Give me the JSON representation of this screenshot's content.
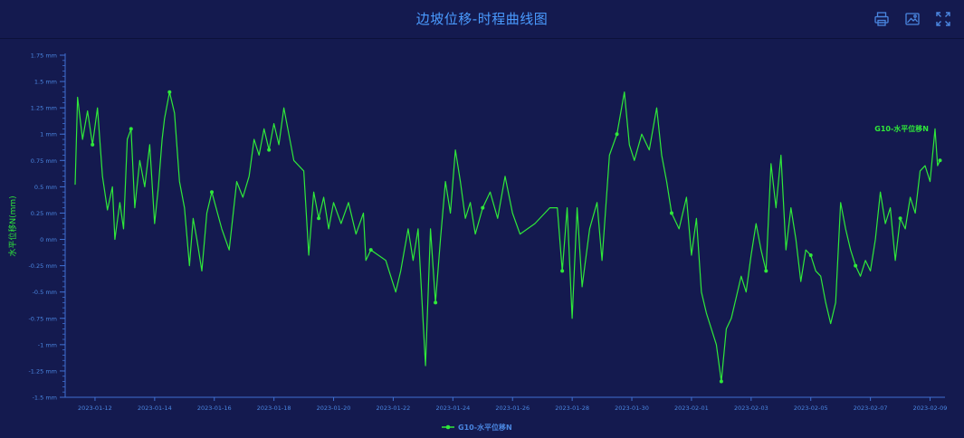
{
  "page": {
    "title": "边坡位移-时程曲线图"
  },
  "toolbar": {
    "icons": [
      "print-icon",
      "save-image-icon",
      "fullscreen-icon"
    ]
  },
  "colors": {
    "background": "#141a4f",
    "title": "#4a9bff",
    "axis": "#3f6fd1",
    "tick_text": "#4a86e0",
    "series": "#2fe83a"
  },
  "chart_data": {
    "type": "line",
    "ylabel": "水平位移N(mm)",
    "y_ticks": [
      "1.75 mm",
      "1.5 mm",
      "1.25 mm",
      "1 mm",
      "0.75 mm",
      "0.5 mm",
      "0.25 mm",
      "0 mm",
      "-0.25 mm",
      "-0.5 mm",
      "-0.75 mm",
      "-1 mm",
      "-1.25 mm",
      "-1.5 mm"
    ],
    "ylim": [
      -1.5,
      1.75
    ],
    "x_ticks": [
      "2023-01-12",
      "2023-01-14",
      "2023-01-16",
      "2023-01-18",
      "2023-01-20",
      "2023-01-22",
      "2023-01-24",
      "2023-01-26",
      "2023-01-28",
      "2023-01-30",
      "2023-02-01",
      "2023-02-03",
      "2023-02-05",
      "2023-02-07",
      "2023-02-09"
    ],
    "xlim": [
      "2023-01-11 00:00",
      "2023-02-09 12:00"
    ],
    "legend": "bottom-center",
    "series": [
      {
        "name": "G10-水平位移N",
        "end_label": "G10-水平位移N",
        "points": [
          [
            "2023-01-11 08:00",
            0.52
          ],
          [
            "2023-01-11 10:00",
            1.35
          ],
          [
            "2023-01-11 14:00",
            0.95
          ],
          [
            "2023-01-11 18:00",
            1.22
          ],
          [
            "2023-01-11 22:00",
            0.9
          ],
          [
            "2023-01-12 02:00",
            1.25
          ],
          [
            "2023-01-12 06:00",
            0.6
          ],
          [
            "2023-01-12 10:00",
            0.28
          ],
          [
            "2023-01-12 14:00",
            0.5
          ],
          [
            "2023-01-12 16:00",
            0.0
          ],
          [
            "2023-01-12 20:00",
            0.35
          ],
          [
            "2023-01-12 23:00",
            0.1
          ],
          [
            "2023-01-13 02:00",
            0.95
          ],
          [
            "2023-01-13 05:00",
            1.05
          ],
          [
            "2023-01-13 08:00",
            0.3
          ],
          [
            "2023-01-13 12:00",
            0.75
          ],
          [
            "2023-01-13 16:00",
            0.5
          ],
          [
            "2023-01-13 20:00",
            0.9
          ],
          [
            "2023-01-14 00:00",
            0.15
          ],
          [
            "2023-01-14 03:00",
            0.5
          ],
          [
            "2023-01-14 06:00",
            0.95
          ],
          [
            "2023-01-14 08:00",
            1.15
          ],
          [
            "2023-01-14 12:00",
            1.4
          ],
          [
            "2023-01-14 16:00",
            1.2
          ],
          [
            "2023-01-14 20:00",
            0.55
          ],
          [
            "2023-01-15 00:00",
            0.3
          ],
          [
            "2023-01-15 04:00",
            -0.25
          ],
          [
            "2023-01-15 07:00",
            0.2
          ],
          [
            "2023-01-15 10:00",
            0.0
          ],
          [
            "2023-01-15 14:00",
            -0.3
          ],
          [
            "2023-01-15 18:00",
            0.25
          ],
          [
            "2023-01-15 22:00",
            0.45
          ],
          [
            "2023-01-16 06:00",
            0.1
          ],
          [
            "2023-01-16 12:00",
            -0.1
          ],
          [
            "2023-01-16 18:00",
            0.55
          ],
          [
            "2023-01-16 23:00",
            0.4
          ],
          [
            "2023-01-17 04:00",
            0.6
          ],
          [
            "2023-01-17 08:00",
            0.95
          ],
          [
            "2023-01-17 12:00",
            0.8
          ],
          [
            "2023-01-17 16:00",
            1.05
          ],
          [
            "2023-01-17 20:00",
            0.85
          ],
          [
            "2023-01-18 00:00",
            1.1
          ],
          [
            "2023-01-18 04:00",
            0.9
          ],
          [
            "2023-01-18 08:00",
            1.25
          ],
          [
            "2023-01-18 12:00",
            1.0
          ],
          [
            "2023-01-18 16:00",
            0.75
          ],
          [
            "2023-01-19 00:00",
            0.65
          ],
          [
            "2023-01-19 04:00",
            -0.15
          ],
          [
            "2023-01-19 08:00",
            0.45
          ],
          [
            "2023-01-19 12:00",
            0.2
          ],
          [
            "2023-01-19 16:00",
            0.4
          ],
          [
            "2023-01-19 20:00",
            0.1
          ],
          [
            "2023-01-20 00:00",
            0.35
          ],
          [
            "2023-01-20 06:00",
            0.15
          ],
          [
            "2023-01-20 12:00",
            0.35
          ],
          [
            "2023-01-20 18:00",
            0.05
          ],
          [
            "2023-01-21 00:00",
            0.25
          ],
          [
            "2023-01-21 02:00",
            -0.2
          ],
          [
            "2023-01-21 06:00",
            -0.1
          ],
          [
            "2023-01-21 18:00",
            -0.2
          ],
          [
            "2023-01-22 02:00",
            -0.5
          ],
          [
            "2023-01-22 06:00",
            -0.3
          ],
          [
            "2023-01-22 12:00",
            0.1
          ],
          [
            "2023-01-22 16:00",
            -0.2
          ],
          [
            "2023-01-22 20:00",
            0.1
          ],
          [
            "2023-01-23 02:00",
            -1.2
          ],
          [
            "2023-01-23 06:00",
            0.1
          ],
          [
            "2023-01-23 10:00",
            -0.6
          ],
          [
            "2023-01-23 14:00",
            0.0
          ],
          [
            "2023-01-23 18:00",
            0.55
          ],
          [
            "2023-01-23 22:00",
            0.25
          ],
          [
            "2023-01-24 02:00",
            0.85
          ],
          [
            "2023-01-24 06:00",
            0.55
          ],
          [
            "2023-01-24 10:00",
            0.2
          ],
          [
            "2023-01-24 14:00",
            0.35
          ],
          [
            "2023-01-24 18:00",
            0.05
          ],
          [
            "2023-01-25 00:00",
            0.3
          ],
          [
            "2023-01-25 06:00",
            0.45
          ],
          [
            "2023-01-25 12:00",
            0.2
          ],
          [
            "2023-01-25 18:00",
            0.6
          ],
          [
            "2023-01-26 00:00",
            0.25
          ],
          [
            "2023-01-26 06:00",
            0.05
          ],
          [
            "2023-01-26 18:00",
            0.15
          ],
          [
            "2023-01-27 06:00",
            0.3
          ],
          [
            "2023-01-27 12:00",
            0.3
          ],
          [
            "2023-01-27 16:00",
            -0.3
          ],
          [
            "2023-01-27 20:00",
            0.3
          ],
          [
            "2023-01-28 00:00",
            -0.75
          ],
          [
            "2023-01-28 04:00",
            0.3
          ],
          [
            "2023-01-28 08:00",
            -0.45
          ],
          [
            "2023-01-28 14:00",
            0.1
          ],
          [
            "2023-01-28 20:00",
            0.35
          ],
          [
            "2023-01-29 00:00",
            -0.2
          ],
          [
            "2023-01-29 06:00",
            0.8
          ],
          [
            "2023-01-29 12:00",
            1.0
          ],
          [
            "2023-01-29 18:00",
            1.4
          ],
          [
            "2023-01-29 22:00",
            0.9
          ],
          [
            "2023-01-30 02:00",
            0.75
          ],
          [
            "2023-01-30 08:00",
            1.0
          ],
          [
            "2023-01-30 14:00",
            0.85
          ],
          [
            "2023-01-30 20:00",
            1.25
          ],
          [
            "2023-01-31 00:00",
            0.8
          ],
          [
            "2023-01-31 04:00",
            0.55
          ],
          [
            "2023-01-31 08:00",
            0.25
          ],
          [
            "2023-01-31 14:00",
            0.1
          ],
          [
            "2023-01-31 20:00",
            0.4
          ],
          [
            "2023-02-01 00:00",
            -0.15
          ],
          [
            "2023-02-01 04:00",
            0.2
          ],
          [
            "2023-02-01 08:00",
            -0.5
          ],
          [
            "2023-02-01 12:00",
            -0.7
          ],
          [
            "2023-02-01 16:00",
            -0.85
          ],
          [
            "2023-02-01 20:00",
            -1.0
          ],
          [
            "2023-02-02 00:00",
            -1.35
          ],
          [
            "2023-02-02 04:00",
            -0.85
          ],
          [
            "2023-02-02 08:00",
            -0.75
          ],
          [
            "2023-02-02 12:00",
            -0.55
          ],
          [
            "2023-02-02 16:00",
            -0.35
          ],
          [
            "2023-02-02 20:00",
            -0.5
          ],
          [
            "2023-02-03 00:00",
            -0.15
          ],
          [
            "2023-02-03 04:00",
            0.15
          ],
          [
            "2023-02-03 08:00",
            -0.1
          ],
          [
            "2023-02-03 12:00",
            -0.3
          ],
          [
            "2023-02-03 16:00",
            0.72
          ],
          [
            "2023-02-03 20:00",
            0.3
          ],
          [
            "2023-02-04 00:00",
            0.8
          ],
          [
            "2023-02-04 04:00",
            -0.1
          ],
          [
            "2023-02-04 08:00",
            0.3
          ],
          [
            "2023-02-04 12:00",
            0.0
          ],
          [
            "2023-02-04 16:00",
            -0.4
          ],
          [
            "2023-02-04 20:00",
            -0.1
          ],
          [
            "2023-02-05 00:00",
            -0.15
          ],
          [
            "2023-02-05 04:00",
            -0.3
          ],
          [
            "2023-02-05 08:00",
            -0.35
          ],
          [
            "2023-02-05 12:00",
            -0.6
          ],
          [
            "2023-02-05 16:00",
            -0.8
          ],
          [
            "2023-02-05 20:00",
            -0.6
          ],
          [
            "2023-02-06 00:00",
            0.35
          ],
          [
            "2023-02-06 04:00",
            0.1
          ],
          [
            "2023-02-06 08:00",
            -0.1
          ],
          [
            "2023-02-06 12:00",
            -0.25
          ],
          [
            "2023-02-06 16:00",
            -0.35
          ],
          [
            "2023-02-06 20:00",
            -0.2
          ],
          [
            "2023-02-07 00:00",
            -0.3
          ],
          [
            "2023-02-07 04:00",
            0.0
          ],
          [
            "2023-02-07 08:00",
            0.45
          ],
          [
            "2023-02-07 12:00",
            0.15
          ],
          [
            "2023-02-07 16:00",
            0.3
          ],
          [
            "2023-02-07 20:00",
            -0.2
          ],
          [
            "2023-02-08 00:00",
            0.2
          ],
          [
            "2023-02-08 04:00",
            0.1
          ],
          [
            "2023-02-08 08:00",
            0.4
          ],
          [
            "2023-02-08 12:00",
            0.25
          ],
          [
            "2023-02-08 16:00",
            0.65
          ],
          [
            "2023-02-08 20:00",
            0.7
          ],
          [
            "2023-02-09 00:00",
            0.55
          ],
          [
            "2023-02-09 04:00",
            1.05
          ],
          [
            "2023-02-09 06:00",
            0.7
          ],
          [
            "2023-02-09 08:00",
            0.75
          ]
        ]
      }
    ]
  }
}
